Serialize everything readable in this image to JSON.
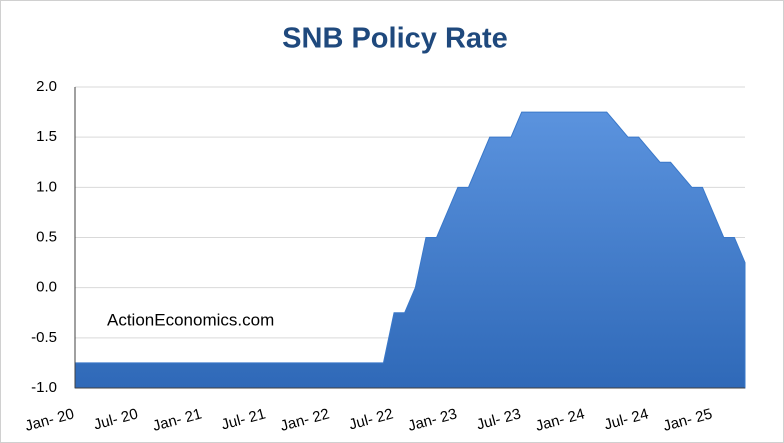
{
  "chart_data": {
    "type": "area",
    "title": "SNB Policy Rate",
    "annotation": "ActionEconomics.com",
    "categories": [
      "Jan- 20",
      null,
      null,
      null,
      null,
      null,
      "Jul- 20",
      null,
      null,
      null,
      null,
      null,
      "Jan- 21",
      null,
      null,
      null,
      null,
      null,
      "Jul- 21",
      null,
      null,
      null,
      null,
      null,
      "Jan- 22",
      null,
      null,
      null,
      null,
      null,
      "Jul- 22",
      null,
      null,
      null,
      null,
      null,
      "Jan- 23",
      null,
      null,
      null,
      null,
      null,
      "Jul- 23",
      null,
      null,
      null,
      null,
      null,
      "Jan- 24",
      null,
      null,
      null,
      null,
      null,
      "Jul- 24",
      null,
      null,
      null,
      null,
      null,
      "Jan- 25",
      null,
      null,
      null
    ],
    "values": [
      -0.75,
      -0.75,
      -0.75,
      -0.75,
      -0.75,
      -0.75,
      -0.75,
      -0.75,
      -0.75,
      -0.75,
      -0.75,
      -0.75,
      -0.75,
      -0.75,
      -0.75,
      -0.75,
      -0.75,
      -0.75,
      -0.75,
      -0.75,
      -0.75,
      -0.75,
      -0.75,
      -0.75,
      -0.75,
      -0.75,
      -0.75,
      -0.75,
      -0.75,
      -0.75,
      -0.25,
      -0.25,
      0,
      0.5,
      0.5,
      0.75,
      1,
      1,
      1.25,
      1.5,
      1.5,
      1.5,
      1.75,
      1.75,
      1.75,
      1.75,
      1.75,
      1.75,
      1.75,
      1.75,
      1.75,
      1.625,
      1.5,
      1.5,
      1.375,
      1.25,
      1.25,
      1.125,
      1,
      1,
      0.75,
      0.5,
      0.5,
      0.25
    ],
    "color": "#3a78c9",
    "ylim": [
      -1,
      2
    ],
    "yticks": [
      {
        "value": -1,
        "label": "-1.0"
      },
      -0.5,
      {
        "value": 0,
        "label": "0.0"
      },
      0.5,
      {
        "value": 1,
        "label": "1.0"
      },
      1.5,
      {
        "value": 2,
        "label": "2.0"
      }
    ],
    "grid": true
  }
}
